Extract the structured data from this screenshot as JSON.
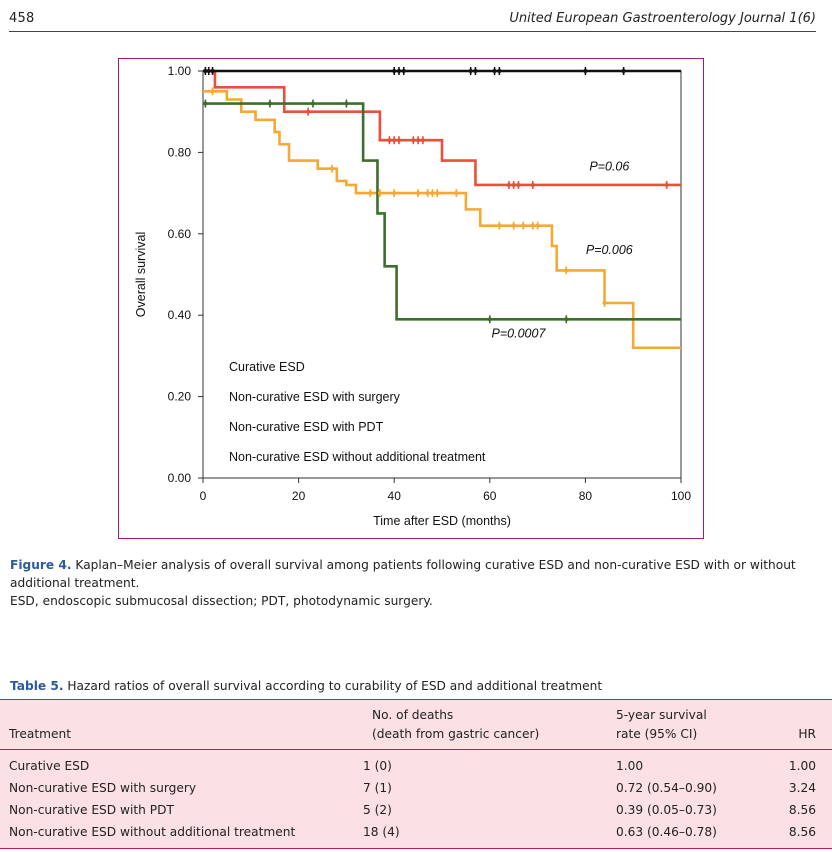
{
  "header": {
    "page_number": "458",
    "journal": "United European Gastroenterology Journal 1(6)"
  },
  "figure": {
    "label": "Figure 4.",
    "caption": "Kaplan–Meier analysis of overall survival among patients following curative ESD and non-curative ESD with or without additional treatment.",
    "note": "ESD, endoscopic submucosal dissection; PDT, photodynamic surgery."
  },
  "chart_data": {
    "type": "line",
    "step": true,
    "xlabel": "Time after ESD (months)",
    "ylabel": "Overall survival",
    "xlim": [
      0,
      100
    ],
    "ylim": [
      0,
      1
    ],
    "x_ticks": [
      "0",
      "20",
      "40",
      "60",
      "80",
      "100"
    ],
    "y_ticks": [
      "0.00",
      "0.20",
      "0.40",
      "0.60",
      "0.80",
      "1.00"
    ],
    "grid": false,
    "legend_position": "bottom-left",
    "series": [
      {
        "name": "Curative ESD",
        "color": "#111111",
        "steps": [
          [
            0,
            1.0
          ],
          [
            100,
            1.0
          ]
        ],
        "censor": [
          0.5,
          1.2,
          2,
          40,
          41,
          42,
          56,
          57,
          61,
          62,
          80,
          88
        ]
      },
      {
        "name": "Non-curative ESD with surgery",
        "color": "#e8503a",
        "steps": [
          [
            0,
            1.0
          ],
          [
            2.5,
            0.96
          ],
          [
            17,
            0.9
          ],
          [
            37,
            0.83
          ],
          [
            50,
            0.78
          ],
          [
            57,
            0.72
          ],
          [
            100,
            0.72
          ]
        ],
        "censor": [
          22,
          39,
          40,
          41,
          44,
          45,
          46,
          64,
          65,
          66,
          69,
          97
        ]
      },
      {
        "name": "Non-curative ESD with PDT",
        "color": "#3e6e2b",
        "steps": [
          [
            0,
            0.92
          ],
          [
            33.5,
            0.78
          ],
          [
            36.5,
            0.65
          ],
          [
            38,
            0.52
          ],
          [
            40.5,
            0.39
          ],
          [
            100,
            0.39
          ]
        ],
        "censor": [
          0.5,
          14,
          23,
          30,
          60,
          76
        ]
      },
      {
        "name": "Non-curative ESD without additional treatment",
        "color": "#f5a833",
        "steps": [
          [
            0,
            0.95
          ],
          [
            5,
            0.93
          ],
          [
            8,
            0.9
          ],
          [
            11,
            0.88
          ],
          [
            15,
            0.85
          ],
          [
            16,
            0.82
          ],
          [
            18,
            0.78
          ],
          [
            24,
            0.76
          ],
          [
            28,
            0.73
          ],
          [
            30,
            0.72
          ],
          [
            32,
            0.7
          ],
          [
            55,
            0.66
          ],
          [
            58,
            0.62
          ],
          [
            73,
            0.57
          ],
          [
            74,
            0.51
          ],
          [
            84,
            0.43
          ],
          [
            90,
            0.32
          ],
          [
            100,
            0.32
          ]
        ],
        "censor": [
          2,
          27,
          35,
          37,
          40,
          45,
          47,
          48,
          49,
          53,
          62,
          65,
          67,
          69,
          70,
          76,
          84
        ]
      }
    ],
    "annotations": [
      {
        "text": "P=0.06",
        "x": 85,
        "y": 0.755,
        "color": "#111111"
      },
      {
        "text": "P=0.006",
        "x": 85,
        "y": 0.55,
        "color": "#111111"
      },
      {
        "text": "P=0.0007",
        "x": 66,
        "y": 0.345,
        "color": "#111111"
      }
    ]
  },
  "table": {
    "label": "Table 5.",
    "title": "Hazard ratios of overall survival according to curability of ESD and additional treatment",
    "headers": {
      "treatment": "Treatment",
      "deaths_line1": "No. of deaths",
      "deaths_line2": "(death from gastric cancer)",
      "survival_line1": "5-year survival",
      "survival_line2": "rate (95% CI)",
      "hr": "HR"
    },
    "rows": [
      {
        "treatment": "Curative ESD",
        "deaths": "1 (0)",
        "survival": "1.00",
        "hr": "1.00"
      },
      {
        "treatment": "Non-curative ESD with surgery",
        "deaths": "7 (1)",
        "survival": "0.72 (0.54–0.90)",
        "hr": "3.24"
      },
      {
        "treatment": "Non-curative ESD with PDT",
        "deaths": "5 (2)",
        "survival": "0.39 (0.05–0.73)",
        "hr": "8.56"
      },
      {
        "treatment": "Non-curative ESD without additional treatment",
        "deaths": "18 (4)",
        "survival": "0.63 (0.46–0.78)",
        "hr": "8.56"
      }
    ]
  }
}
